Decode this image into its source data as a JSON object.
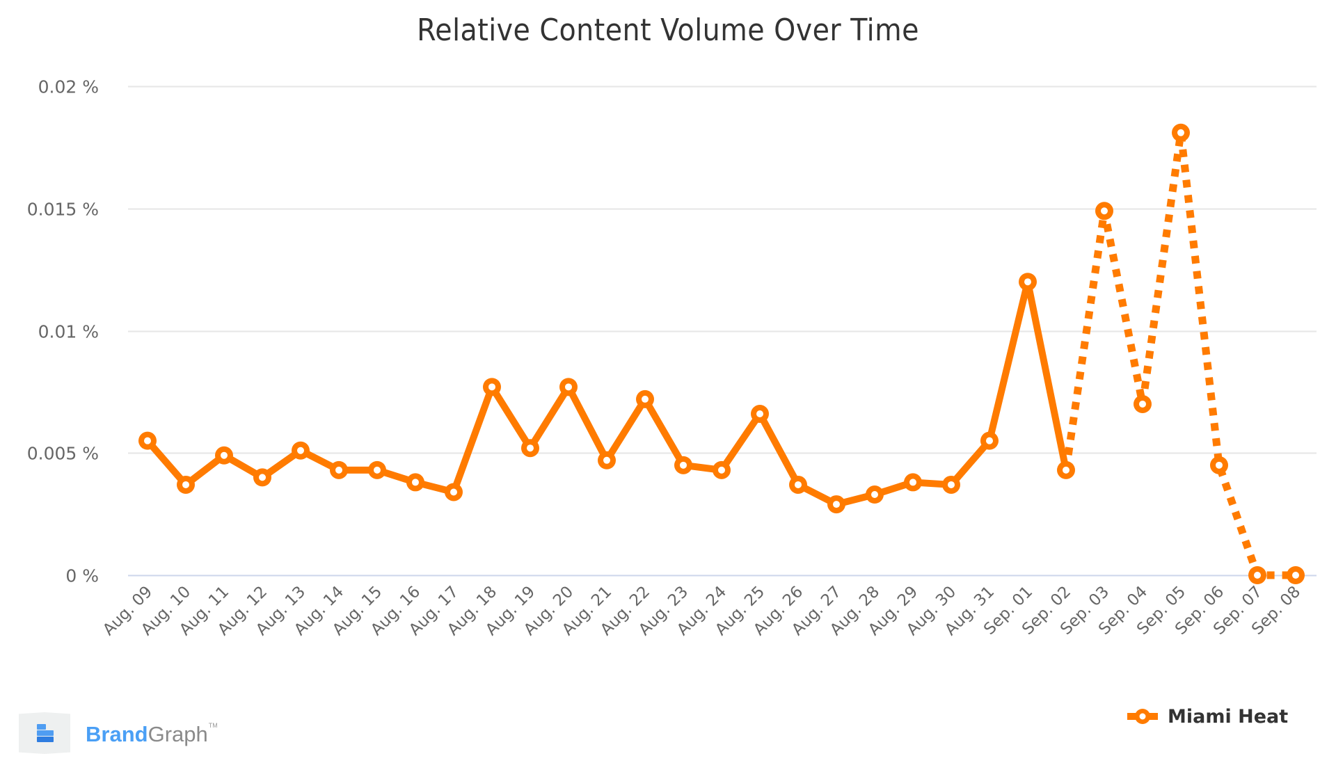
{
  "chart_data": {
    "type": "line",
    "title": "Relative Content Volume Over Time",
    "xlabel": "",
    "ylabel": "",
    "ylim": [
      0,
      0.02
    ],
    "yticks": [
      0,
      0.005,
      0.01,
      0.015,
      0.02
    ],
    "ytick_labels": [
      "0 %",
      "0.005 %",
      "0.01 %",
      "0.015 %",
      "0.02 %"
    ],
    "grid": true,
    "legend_position": "bottom-right",
    "categories": [
      "Aug. 09",
      "Aug. 10",
      "Aug. 11",
      "Aug. 12",
      "Aug. 13",
      "Aug. 14",
      "Aug. 15",
      "Aug. 16",
      "Aug. 17",
      "Aug. 18",
      "Aug. 19",
      "Aug. 20",
      "Aug. 21",
      "Aug. 22",
      "Aug. 23",
      "Aug. 24",
      "Aug. 25",
      "Aug. 26",
      "Aug. 27",
      "Aug. 28",
      "Aug. 29",
      "Aug. 30",
      "Aug. 31",
      "Sep. 01",
      "Sep. 02",
      "Sep. 03",
      "Sep. 04",
      "Sep. 05",
      "Sep. 06",
      "Sep. 07",
      "Sep. 08"
    ],
    "series": [
      {
        "name": "Miami Heat",
        "color": "#ff7b00",
        "solid_until_index": 24,
        "dashed_from_index": 24,
        "values": [
          0.0055,
          0.0037,
          0.0049,
          0.004,
          0.0051,
          0.0043,
          0.0043,
          0.0038,
          0.0034,
          0.0077,
          0.0052,
          0.0077,
          0.0047,
          0.0072,
          0.0045,
          0.0043,
          0.0066,
          0.0037,
          0.0029,
          0.0033,
          0.0038,
          0.0037,
          0.0055,
          0.012,
          0.0043,
          0.0149,
          0.007,
          0.0181,
          0.0045,
          0.0,
          0.0
        ]
      }
    ]
  },
  "colors": {
    "series": "#ff7b00",
    "grid": "#e6e6e6",
    "baseline": "#ccd6eb",
    "tick_text": "#666666",
    "title_text": "#333333"
  },
  "legend": {
    "label": "Miami Heat"
  },
  "branding": {
    "brand": "Brand",
    "graph": "Graph",
    "tm": "TM"
  }
}
